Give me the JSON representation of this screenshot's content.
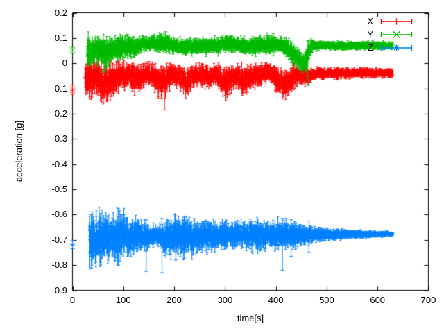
{
  "chart_data": {
    "type": "scatter",
    "style": "points-with-errorbars",
    "title": "",
    "xlabel": "time[s]",
    "ylabel": "acceleration [g]",
    "xlim": [
      0,
      700
    ],
    "ylim": [
      -0.9,
      0.2
    ],
    "grid": false,
    "background": "#ffffff",
    "axis_color": "#000000",
    "legend_position": "top-right-inside",
    "xticks": [
      0,
      100,
      200,
      300,
      400,
      500,
      600,
      700
    ],
    "xtick_labels": [
      "0",
      "100",
      "200",
      "300",
      "400",
      "500",
      "600",
      "700"
    ],
    "yticks": [
      0.2,
      0.1,
      0,
      -0.1,
      -0.2,
      -0.3,
      -0.4,
      -0.5,
      -0.6,
      -0.7,
      -0.8,
      -0.9
    ],
    "ytick_labels": [
      "0.2",
      "0.1",
      "0",
      "-0.1",
      "-0.2",
      "-0.3",
      "-0.4",
      "-0.5",
      "-0.6",
      "-0.7",
      "-0.8",
      "-0.9"
    ],
    "sample_dt": 0.4,
    "series": [
      {
        "name": "X",
        "color": "#ff0000",
        "marker": "plus",
        "isolated_points": [
          {
            "t": 0,
            "value": -0.094,
            "err": 0.008
          },
          {
            "t": 0,
            "value": -0.115,
            "err": 0.008
          }
        ],
        "band": {
          "t_start": 25,
          "t_end": 630,
          "keyframes": [
            [
              25,
              -0.055,
              0.06
            ],
            [
              35,
              -0.06,
              0.065
            ],
            [
              45,
              -0.05,
              0.06
            ],
            [
              55,
              -0.07,
              0.06
            ],
            [
              67,
              -0.075,
              0.06
            ],
            [
              80,
              -0.06,
              0.05
            ],
            [
              92,
              -0.05,
              0.045
            ],
            [
              105,
              -0.045,
              0.042
            ],
            [
              118,
              -0.05,
              0.042
            ],
            [
              130,
              -0.057,
              0.045
            ],
            [
              142,
              -0.045,
              0.038
            ],
            [
              152,
              -0.04,
              0.035
            ],
            [
              162,
              -0.05,
              0.045
            ],
            [
              172,
              -0.06,
              0.05
            ],
            [
              181,
              -0.068,
              0.05
            ],
            [
              190,
              -0.05,
              0.042
            ],
            [
              202,
              -0.044,
              0.036
            ],
            [
              212,
              -0.055,
              0.04
            ],
            [
              222,
              -0.068,
              0.045
            ],
            [
              232,
              -0.063,
              0.042
            ],
            [
              242,
              -0.046,
              0.035
            ],
            [
              252,
              -0.04,
              0.033
            ],
            [
              262,
              -0.048,
              0.036
            ],
            [
              272,
              -0.05,
              0.036
            ],
            [
              282,
              -0.04,
              0.032
            ],
            [
              292,
              -0.065,
              0.045
            ],
            [
              302,
              -0.078,
              0.046
            ],
            [
              312,
              -0.06,
              0.04
            ],
            [
              322,
              -0.045,
              0.035
            ],
            [
              332,
              -0.065,
              0.044
            ],
            [
              342,
              -0.066,
              0.042
            ],
            [
              352,
              -0.05,
              0.037
            ],
            [
              362,
              -0.045,
              0.035
            ],
            [
              372,
              -0.044,
              0.035
            ],
            [
              382,
              -0.032,
              0.03
            ],
            [
              392,
              -0.042,
              0.034
            ],
            [
              402,
              -0.06,
              0.04
            ],
            [
              412,
              -0.08,
              0.042
            ],
            [
              422,
              -0.078,
              0.04
            ],
            [
              432,
              -0.055,
              0.036
            ],
            [
              442,
              -0.046,
              0.032
            ],
            [
              452,
              -0.044,
              0.03
            ],
            [
              460,
              -0.05,
              0.032
            ],
            [
              468,
              -0.048,
              0.028
            ],
            [
              474,
              -0.042,
              0.019
            ],
            [
              500,
              -0.04,
              0.017
            ],
            [
              540,
              -0.04,
              0.016
            ],
            [
              580,
              -0.038,
              0.015
            ],
            [
              630,
              -0.038,
              0.014
            ]
          ]
        },
        "outlier_errorbars": [
          {
            "t": 181,
            "lo": -0.185,
            "hi": -0.03
          },
          {
            "t": 424,
            "lo": -0.128,
            "hi": -0.04
          }
        ]
      },
      {
        "name": "Y",
        "color": "#00bb00",
        "marker": "cross",
        "isolated_points": [
          {
            "t": 0,
            "value": 0.052,
            "err": 0.012
          }
        ],
        "band": {
          "t_start": 29,
          "t_end": 630,
          "keyframes": [
            [
              29,
              0.05,
              0.048
            ],
            [
              40,
              0.055,
              0.045
            ],
            [
              55,
              0.05,
              0.045
            ],
            [
              65,
              0.04,
              0.05
            ],
            [
              75,
              0.055,
              0.04
            ],
            [
              90,
              0.06,
              0.038
            ],
            [
              105,
              0.065,
              0.035
            ],
            [
              120,
              0.07,
              0.03
            ],
            [
              135,
              0.075,
              0.025
            ],
            [
              150,
              0.075,
              0.022
            ],
            [
              165,
              0.08,
              0.024
            ],
            [
              178,
              0.085,
              0.028
            ],
            [
              190,
              0.075,
              0.026
            ],
            [
              200,
              0.068,
              0.026
            ],
            [
              215,
              0.068,
              0.027
            ],
            [
              230,
              0.067,
              0.027
            ],
            [
              245,
              0.068,
              0.026
            ],
            [
              260,
              0.069,
              0.025
            ],
            [
              275,
              0.07,
              0.025
            ],
            [
              290,
              0.072,
              0.026
            ],
            [
              305,
              0.079,
              0.028
            ],
            [
              318,
              0.076,
              0.027
            ],
            [
              330,
              0.07,
              0.026
            ],
            [
              345,
              0.068,
              0.025
            ],
            [
              360,
              0.068,
              0.026
            ],
            [
              375,
              0.072,
              0.028
            ],
            [
              390,
              0.078,
              0.028
            ],
            [
              400,
              0.075,
              0.026
            ],
            [
              410,
              0.07,
              0.025
            ],
            [
              420,
              0.065,
              0.028
            ],
            [
              430,
              0.045,
              0.035
            ],
            [
              440,
              0.02,
              0.035
            ],
            [
              448,
              0.005,
              0.03
            ],
            [
              455,
              0.0,
              0.028
            ],
            [
              462,
              0.025,
              0.035
            ],
            [
              468,
              0.055,
              0.03
            ],
            [
              473,
              0.07,
              0.016
            ],
            [
              490,
              0.071,
              0.014
            ],
            [
              520,
              0.07,
              0.013
            ],
            [
              560,
              0.07,
              0.012
            ],
            [
              600,
              0.07,
              0.012
            ],
            [
              630,
              0.07,
              0.012
            ]
          ]
        },
        "outlier_errorbars": [
          {
            "t": 62,
            "lo": -0.035,
            "hi": 0.06
          },
          {
            "t": 108,
            "lo": 0.02,
            "hi": 0.115
          },
          {
            "t": 183,
            "lo": 0.04,
            "hi": 0.125
          },
          {
            "t": 355,
            "lo": 0.04,
            "hi": 0.105
          },
          {
            "t": 395,
            "lo": 0.03,
            "hi": 0.118
          },
          {
            "t": 463,
            "lo": -0.088,
            "hi": 0.09
          }
        ]
      },
      {
        "name": "Z",
        "color": "#0080ff",
        "marker": "star",
        "isolated_points": [
          {
            "t": 0,
            "value": -0.719,
            "err": 0.016
          }
        ],
        "band": {
          "t_start": 33,
          "t_end": 630,
          "keyframes": [
            [
              33,
              -0.7,
              0.072
            ],
            [
              42,
              -0.7,
              0.08
            ],
            [
              52,
              -0.695,
              0.078
            ],
            [
              65,
              -0.692,
              0.074
            ],
            [
              78,
              -0.69,
              0.072
            ],
            [
              90,
              -0.69,
              0.075
            ],
            [
              102,
              -0.688,
              0.066
            ],
            [
              115,
              -0.686,
              0.06
            ],
            [
              128,
              -0.685,
              0.052
            ],
            [
              140,
              -0.685,
              0.042
            ],
            [
              152,
              -0.684,
              0.034
            ],
            [
              163,
              -0.683,
              0.03
            ],
            [
              172,
              -0.685,
              0.038
            ],
            [
              182,
              -0.69,
              0.056
            ],
            [
              192,
              -0.69,
              0.06
            ],
            [
              205,
              -0.687,
              0.06
            ],
            [
              218,
              -0.686,
              0.06
            ],
            [
              230,
              -0.686,
              0.058
            ],
            [
              242,
              -0.685,
              0.054
            ],
            [
              255,
              -0.685,
              0.05
            ],
            [
              268,
              -0.684,
              0.046
            ],
            [
              280,
              -0.683,
              0.043
            ],
            [
              295,
              -0.683,
              0.04
            ],
            [
              310,
              -0.681,
              0.046
            ],
            [
              322,
              -0.681,
              0.042
            ],
            [
              335,
              -0.68,
              0.04
            ],
            [
              348,
              -0.68,
              0.043
            ],
            [
              360,
              -0.68,
              0.046
            ],
            [
              372,
              -0.68,
              0.042
            ],
            [
              385,
              -0.68,
              0.042
            ],
            [
              398,
              -0.68,
              0.044
            ],
            [
              410,
              -0.68,
              0.046
            ],
            [
              422,
              -0.68,
              0.04
            ],
            [
              435,
              -0.679,
              0.038
            ],
            [
              448,
              -0.679,
              0.032
            ],
            [
              460,
              -0.679,
              0.028
            ],
            [
              475,
              -0.679,
              0.024
            ],
            [
              490,
              -0.678,
              0.021
            ],
            [
              510,
              -0.678,
              0.018
            ],
            [
              530,
              -0.678,
              0.015
            ],
            [
              555,
              -0.677,
              0.013
            ],
            [
              580,
              -0.677,
              0.011
            ],
            [
              605,
              -0.677,
              0.009
            ],
            [
              620,
              -0.677,
              0.008
            ],
            [
              630,
              -0.677,
              0.007
            ]
          ]
        },
        "outlier_errorbars": [
          {
            "t": 37,
            "lo": -0.815,
            "hi": -0.6
          },
          {
            "t": 55,
            "lo": -0.8,
            "hi": -0.615
          },
          {
            "t": 90,
            "lo": -0.8,
            "hi": -0.575
          },
          {
            "t": 145,
            "lo": -0.825,
            "hi": -0.62
          },
          {
            "t": 176,
            "lo": -0.83,
            "hi": -0.615
          },
          {
            "t": 203,
            "lo": -0.78,
            "hi": -0.605
          },
          {
            "t": 220,
            "lo": -0.775,
            "hi": -0.61
          },
          {
            "t": 413,
            "lo": -0.82,
            "hi": -0.615
          },
          {
            "t": 430,
            "lo": -0.765,
            "hi": -0.62
          },
          {
            "t": 465,
            "lo": -0.75,
            "hi": -0.625
          }
        ]
      }
    ]
  }
}
